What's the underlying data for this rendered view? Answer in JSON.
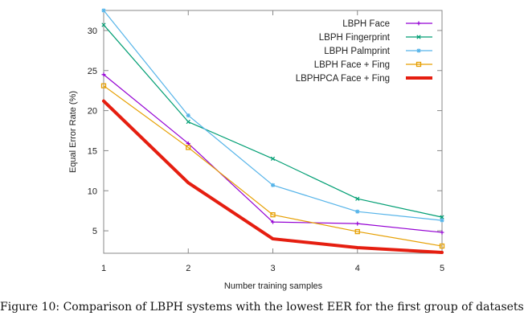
{
  "caption": "Figure 10: Comparison of LBPH systems with the lowest EER for the first group of datasets.",
  "chart_data": {
    "type": "line",
    "title": "",
    "xlabel": "Number training samples",
    "ylabel": "Equal Error Rate (%)",
    "x": [
      1,
      2,
      3,
      4,
      5
    ],
    "xlim": [
      1,
      5
    ],
    "ylim": [
      2.2,
      32.5
    ],
    "xticks": [
      1,
      2,
      3,
      4,
      5
    ],
    "yticks": [
      5,
      10,
      15,
      20,
      25,
      30
    ],
    "grid": false,
    "legend_position": "top-right",
    "series": [
      {
        "name": "LBPH Face",
        "color": "#9400d3",
        "marker": "plus",
        "width": "thin",
        "values": [
          24.5,
          15.9,
          6.1,
          5.9,
          4.8
        ]
      },
      {
        "name": "LBPH Fingerprint",
        "color": "#009e73",
        "marker": "cross",
        "width": "thin",
        "values": [
          30.7,
          18.6,
          14.0,
          9.0,
          6.7
        ]
      },
      {
        "name": "LBPH Palmprint",
        "color": "#56b4e9",
        "marker": "star",
        "width": "thin",
        "values": [
          32.5,
          19.4,
          10.7,
          7.4,
          6.3
        ]
      },
      {
        "name": "LBPH Face + Fing",
        "color": "#e69f00",
        "marker": "square",
        "width": "thin",
        "values": [
          23.1,
          15.4,
          7.0,
          4.9,
          3.1
        ]
      },
      {
        "name": "LBPHPCA Face + Fing",
        "color": "#e51e10",
        "marker": "none",
        "width": "thick",
        "values": [
          21.2,
          11.0,
          4.0,
          2.9,
          2.3
        ]
      }
    ]
  }
}
